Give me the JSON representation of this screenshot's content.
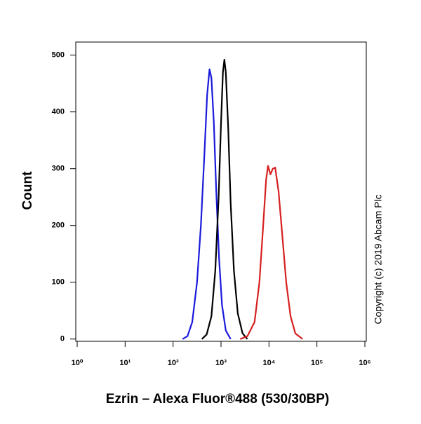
{
  "chart_data": {
    "type": "line",
    "y_label": "Count",
    "x_label": "Ezrin – Alexa Fluor®488 (530/30BP)",
    "annotation": "Copyright (c) 2019 Abcam Plc",
    "x_scale": "log",
    "xlim": [
      1,
      1000000
    ],
    "xticks": [
      {
        "value": 1,
        "label": "10⁰"
      },
      {
        "value": 10,
        "label": "10¹"
      },
      {
        "value": 100,
        "label": "10²"
      },
      {
        "value": 1000,
        "label": "10³"
      },
      {
        "value": 10000,
        "label": "10⁴"
      },
      {
        "value": 100000,
        "label": "10⁵"
      },
      {
        "value": 1000000,
        "label": "10⁶"
      }
    ],
    "ylim": [
      -4,
      523
    ],
    "yticks": [
      0,
      100,
      200,
      300,
      400,
      500
    ],
    "series": [
      {
        "color": "#1a1adb",
        "x": [
          158,
          200,
          251,
          316,
          380,
          447,
          513,
          575,
          631,
          708,
          794,
          912,
          1047,
          1259,
          1585
        ],
        "values": [
          0,
          5,
          30,
          100,
          200,
          320,
          430,
          475,
          460,
          380,
          260,
          140,
          60,
          15,
          0
        ]
      },
      {
        "color": "#000000",
        "x": [
          398,
          501,
          631,
          759,
          891,
          1000,
          1096,
          1175,
          1259,
          1413,
          1585,
          1862,
          2239,
          2818,
          3548
        ],
        "values": [
          0,
          8,
          40,
          120,
          250,
          380,
          470,
          492,
          470,
          370,
          240,
          120,
          45,
          10,
          0
        ]
      },
      {
        "color": "#d62020",
        "x": [
          2512,
          3548,
          5012,
          6310,
          7586,
          8710,
          9550,
          10715,
          12023,
          13490,
          15849,
          19055,
          22909,
          28184,
          35481,
          50119
        ],
        "values": [
          0,
          5,
          30,
          100,
          200,
          280,
          305,
          290,
          300,
          302,
          260,
          180,
          100,
          40,
          10,
          0
        ]
      }
    ]
  }
}
